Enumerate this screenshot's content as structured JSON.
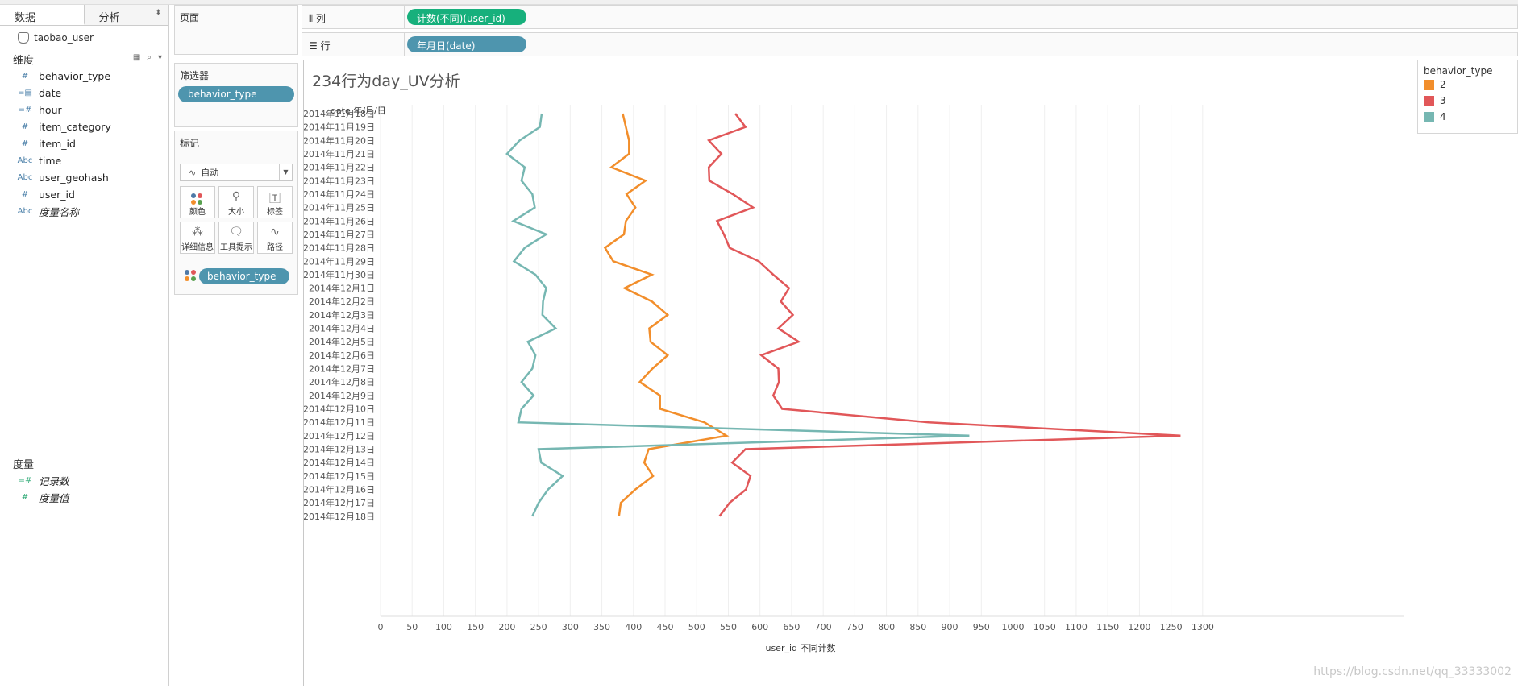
{
  "tabs": {
    "data": "数据",
    "analysis": "分析"
  },
  "datasource": "taobao_user",
  "dimensions": {
    "header": "维度",
    "fields": [
      {
        "type": "#",
        "label": "behavior_type"
      },
      {
        "type": "=▤",
        "label": "date"
      },
      {
        "type": "=#",
        "label": "hour"
      },
      {
        "type": "#",
        "label": "item_category"
      },
      {
        "type": "#",
        "label": "item_id"
      },
      {
        "type": "Abc",
        "label": "time"
      },
      {
        "type": "Abc",
        "label": "user_geohash"
      },
      {
        "type": "#",
        "label": "user_id"
      },
      {
        "type": "Abc",
        "label": "度量名称"
      }
    ]
  },
  "measures": {
    "header": "度量",
    "fields": [
      {
        "type": "=#",
        "label": "记录数"
      },
      {
        "type": "#",
        "label": "度量值"
      }
    ]
  },
  "pages": {
    "title": "页面"
  },
  "filters": {
    "title": "筛选器",
    "pill": "behavior_type"
  },
  "marks": {
    "title": "标记",
    "type": "自动",
    "buttons": {
      "color": "颜色",
      "size": "大小",
      "label": "标签",
      "detail": "详细信息",
      "tooltip": "工具提示",
      "path": "路径"
    },
    "color_pill": "behavior_type"
  },
  "columns": {
    "label": "列",
    "pill": "计数(不同)(user_id)"
  },
  "rows": {
    "label": "行",
    "pill": "年月日(date)"
  },
  "legend": {
    "title": "behavior_type",
    "items": [
      {
        "label": "2",
        "color": "#f28e2b"
      },
      {
        "label": "3",
        "color": "#e15759"
      },
      {
        "label": "4",
        "color": "#76b7b2"
      }
    ]
  },
  "watermark": "https://blog.csdn.net/qq_33333002",
  "chart_data": {
    "type": "line",
    "title": "234行为day_UV分析",
    "ylabel": "date 年/月/日",
    "xlabel": "user_id 不同计数",
    "xlim": [
      0,
      1300
    ],
    "x_ticks": [
      0,
      50,
      100,
      150,
      200,
      250,
      300,
      350,
      400,
      450,
      500,
      550,
      600,
      650,
      700,
      750,
      800,
      850,
      900,
      950,
      1000,
      1050,
      1100,
      1150,
      1200,
      1250,
      1300
    ],
    "grid": "vertical",
    "categories": [
      "2014年11月18日",
      "2014年11月19日",
      "2014年11月20日",
      "2014年11月21日",
      "2014年11月22日",
      "2014年11月23日",
      "2014年11月24日",
      "2014年11月25日",
      "2014年11月26日",
      "2014年11月27日",
      "2014年11月28日",
      "2014年11月29日",
      "2014年11月30日",
      "2014年12月1日",
      "2014年12月2日",
      "2014年12月3日",
      "2014年12月4日",
      "2014年12月5日",
      "2014年12月6日",
      "2014年12月7日",
      "2014年12月8日",
      "2014年12月9日",
      "2014年12月10日",
      "2014年12月11日",
      "2014年12月12日",
      "2014年12月13日",
      "2014年12月14日",
      "2014年12月15日",
      "2014年12月16日",
      "2014年12月17日",
      "2014年12月18日"
    ],
    "series": [
      {
        "name": "2",
        "color": "#f28e2b",
        "values": [
          383,
          388,
          393,
          393,
          365,
          419,
          389,
          403,
          388,
          385,
          355,
          368,
          429,
          386,
          429,
          454,
          425,
          427,
          454,
          430,
          410,
          442,
          442,
          512,
          547,
          424,
          417,
          431,
          403,
          380,
          377
        ]
      },
      {
        "name": "3",
        "color": "#e15759",
        "values": [
          561,
          577,
          519,
          539,
          519,
          520,
          557,
          589,
          532,
          543,
          552,
          598,
          621,
          646,
          633,
          652,
          629,
          661,
          602,
          629,
          630,
          621,
          635,
          867,
          1265,
          577,
          556,
          585,
          578,
          552,
          536
        ]
      },
      {
        "name": "4",
        "color": "#76b7b2",
        "values": [
          255,
          252,
          220,
          200,
          228,
          223,
          240,
          244,
          210,
          262,
          228,
          211,
          245,
          262,
          257,
          256,
          277,
          233,
          245,
          240,
          223,
          242,
          223,
          218,
          931,
          250,
          254,
          288,
          265,
          250,
          240
        ]
      }
    ]
  }
}
